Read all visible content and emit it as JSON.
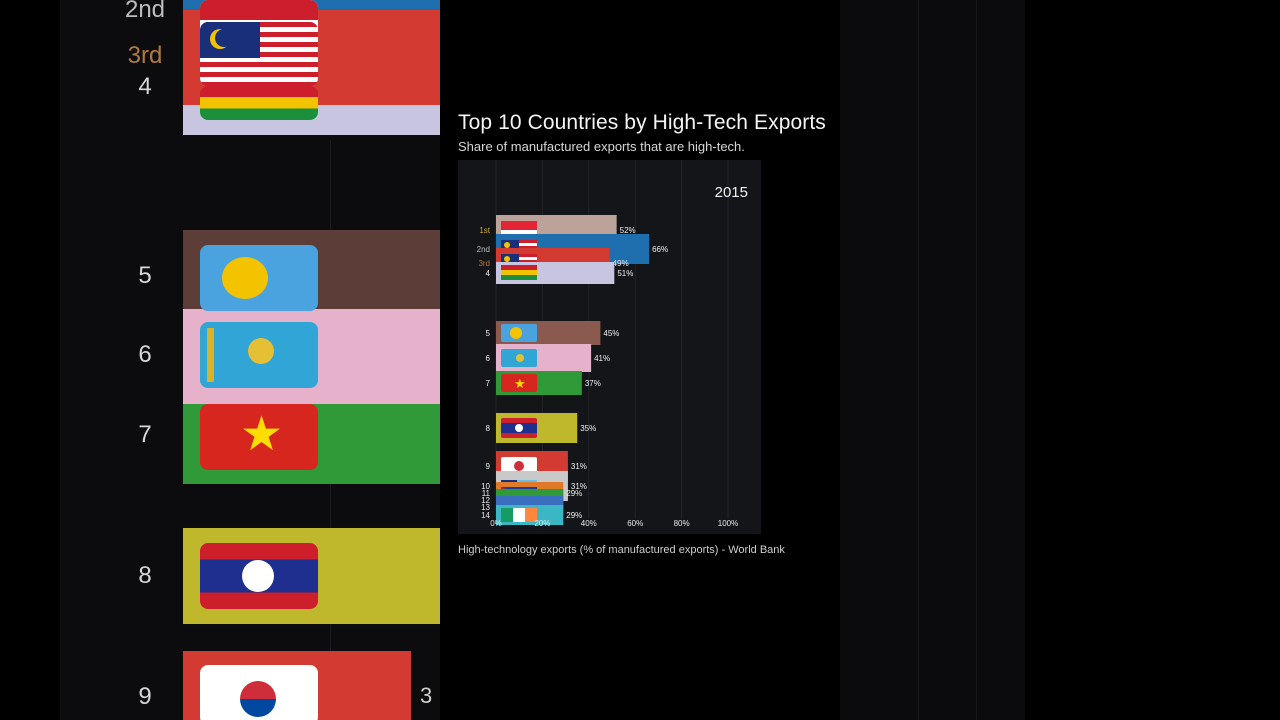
{
  "title": "Top 10 Countries by High-Tech Exports",
  "subtitle": "Share of manufactured exports that are high-tech.",
  "source": "High-technology exports (% of manufactured exports) - World Bank",
  "year": "2015",
  "background": {
    "ranks": [
      "2nd",
      "3rd",
      "4",
      "5",
      "6",
      "7",
      "8",
      "9"
    ],
    "edge_digit": "3"
  },
  "colors": {
    "gold": "#c9a13a",
    "silver": "#bdbdbd",
    "bronze": "#b07a3a",
    "panel": "#141519"
  },
  "chart_data": {
    "type": "bar",
    "orientation": "horizontal",
    "x_ticks": [
      "0%",
      "20%",
      "40%",
      "60%",
      "80%",
      "100%"
    ],
    "xlim": [
      0,
      100
    ],
    "grid": true,
    "bars": [
      {
        "rank": "1st",
        "flag": "singapore-flag",
        "value": 52,
        "label": "52%",
        "color": "#bca39a"
      },
      {
        "rank": "2nd",
        "flag": "malaysia-flag",
        "value": 66,
        "label": "66%",
        "color": "#1f6fae"
      },
      {
        "rank": "3rd",
        "flag": "malaysia-flag",
        "value": 49,
        "label": "49%",
        "color": "#d33a32"
      },
      {
        "rank": "4",
        "flag": "ghana-flag",
        "value": 51,
        "label": "51%",
        "color": "#c8c5e0"
      },
      {
        "rank": "5",
        "flag": "palau-flag",
        "value": 45,
        "label": "45%",
        "color": "#8a5a4e"
      },
      {
        "rank": "6",
        "flag": "kazakhstan-flag",
        "value": 41,
        "label": "41%",
        "color": "#e6b2cb"
      },
      {
        "rank": "7",
        "flag": "vietnam-flag",
        "value": 37,
        "label": "37%",
        "color": "#2f9a37"
      },
      {
        "rank": "8",
        "flag": "laos-flag",
        "value": 35,
        "label": "35%",
        "color": "#bfb82c"
      },
      {
        "rank": "9",
        "flag": "south-korea-flag",
        "value": 31,
        "label": "31%",
        "color": "#d33a32"
      },
      {
        "rank": "10",
        "flag": "fiji-flag",
        "value": 31,
        "label": "31%",
        "color": "#c9c9c9"
      },
      {
        "rank": "11",
        "flag": "cuba-flag",
        "value": 29,
        "label": "29%",
        "color": "#e07a2a"
      },
      {
        "rank": "12",
        "flag": "cuba-flag",
        "value": 29,
        "label": "",
        "color": "#2f9a37"
      },
      {
        "rank": "13",
        "flag": "cuba-flag",
        "value": 29,
        "label": "",
        "color": "#3a6fc0"
      },
      {
        "rank": "14",
        "flag": "ireland-flag",
        "value": 29,
        "label": "29%",
        "color": "#3bb6c5"
      }
    ]
  }
}
